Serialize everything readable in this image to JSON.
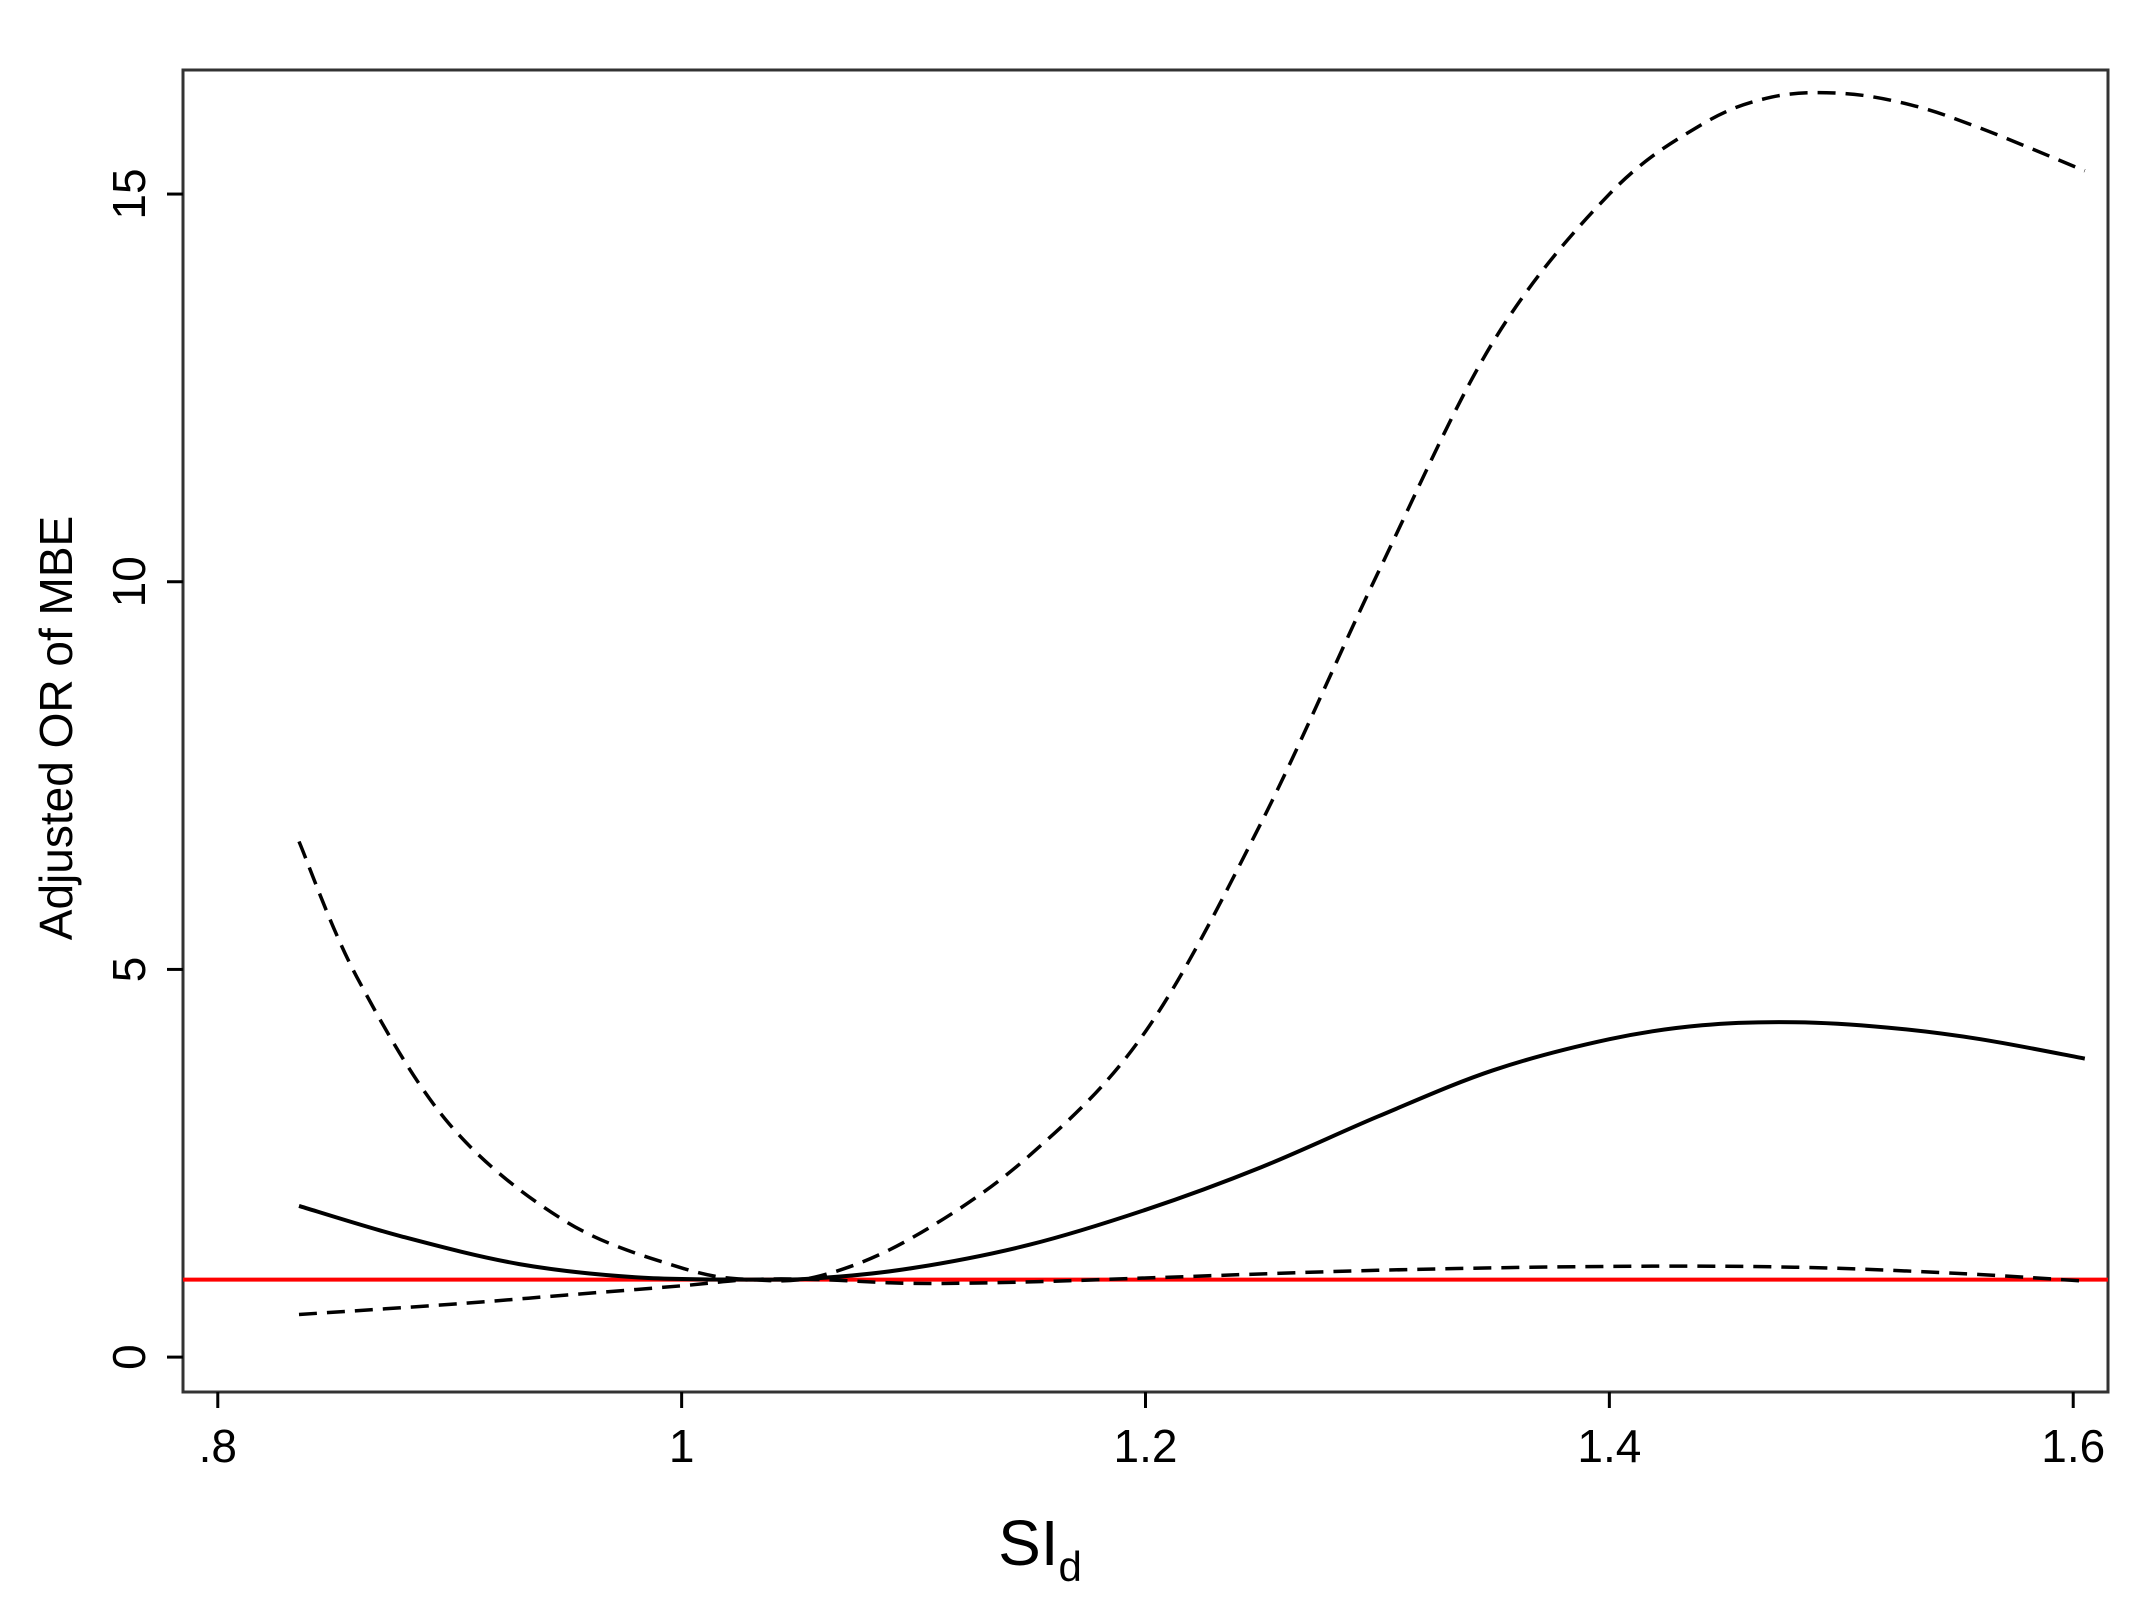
{
  "chart_data": {
    "type": "line",
    "title": "",
    "xlabel_main": "SI",
    "xlabel_sub": "d",
    "ylabel": "Adjusted OR of MBE",
    "xlim": [
      0.785,
      1.615
    ],
    "ylim": [
      -0.45,
      16.6
    ],
    "x_ticks": [
      0.8,
      1.0,
      1.2,
      1.4,
      1.6
    ],
    "x_tick_labels": [
      ".8",
      "1",
      "1.2",
      "1.4",
      "1.6"
    ],
    "y_ticks": [
      0,
      5,
      10,
      15
    ],
    "y_tick_labels": [
      "0",
      "5",
      "10",
      "15"
    ],
    "grid": false,
    "reference_line": {
      "y": 1,
      "color": "#ff0000"
    },
    "series": [
      {
        "style": "solid",
        "color": "#000000",
        "x": [
          0.835,
          0.88,
          0.93,
          0.98,
          1.03,
          1.06,
          1.1,
          1.15,
          1.2,
          1.25,
          1.3,
          1.35,
          1.4,
          1.44,
          1.48,
          1.52,
          1.56,
          1.605
        ],
        "y": [
          1.95,
          1.55,
          1.2,
          1.03,
          1.0,
          1.02,
          1.15,
          1.45,
          1.9,
          2.45,
          3.1,
          3.7,
          4.1,
          4.28,
          4.32,
          4.25,
          4.1,
          3.85
        ]
      },
      {
        "style": "dashed",
        "color": "#000000",
        "x": [
          0.835,
          0.86,
          0.9,
          0.95,
          1.0,
          1.03,
          1.06,
          1.1,
          1.15,
          1.2,
          1.25,
          1.3,
          1.35,
          1.4,
          1.44,
          1.47,
          1.5,
          1.53,
          1.56,
          1.605
        ],
        "y": [
          6.65,
          4.9,
          3.0,
          1.75,
          1.15,
          1.0,
          1.05,
          1.55,
          2.6,
          4.2,
          6.9,
          10.1,
          13.1,
          15.0,
          15.9,
          16.25,
          16.3,
          16.15,
          15.85,
          15.3
        ]
      },
      {
        "style": "dashed",
        "color": "#000000",
        "x": [
          0.835,
          0.9,
          0.95,
          1.0,
          1.03,
          1.06,
          1.1,
          1.15,
          1.2,
          1.3,
          1.4,
          1.48,
          1.55,
          1.605
        ],
        "y": [
          0.55,
          0.68,
          0.8,
          0.92,
          1.0,
          1.0,
          0.95,
          0.97,
          1.02,
          1.12,
          1.17,
          1.16,
          1.08,
          0.98
        ]
      }
    ]
  }
}
